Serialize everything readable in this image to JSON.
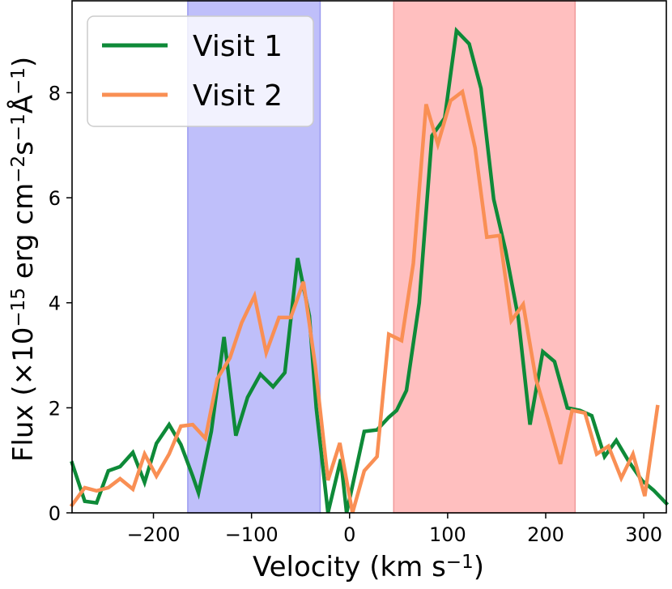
{
  "chart_data": {
    "type": "line",
    "xlabel": {
      "base": "Velocity (km s",
      "sup": "−1",
      "tail": ")"
    },
    "ylabel": {
      "parts": [
        {
          "t": "Flux (×10",
          "sup": false
        },
        {
          "t": "−15",
          "sup": true
        },
        {
          "t": " erg cm",
          "sup": false
        },
        {
          "t": "−2",
          "sup": true
        },
        {
          "t": "s",
          "sup": false
        },
        {
          "t": "−1",
          "sup": true
        },
        {
          "t": "Å",
          "sup": false
        },
        {
          "t": "−1",
          "sup": true
        },
        {
          "t": ")",
          "sup": false
        }
      ]
    },
    "xlim": [
      -283,
      323
    ],
    "ylim": [
      0,
      9.75
    ],
    "xticks": [
      -200,
      -100,
      0,
      100,
      200,
      300
    ],
    "xtick_labels": [
      "−200",
      "−100",
      "0",
      "100",
      "200",
      "300"
    ],
    "yticks": [
      0,
      2,
      4,
      6,
      8
    ],
    "ytick_labels": [
      "0",
      "2",
      "4",
      "6",
      "8"
    ],
    "shaded_regions": [
      {
        "name": "blue-region",
        "x0": -165,
        "x1": -30,
        "color": "#bfbffa",
        "edge": "#9a9af0"
      },
      {
        "name": "red-region",
        "x0": 45,
        "x1": 230,
        "color": "#ffbfbf",
        "edge": "#f09a9a"
      }
    ],
    "series": [
      {
        "name": "Visit 1",
        "color": "#0e8a38",
        "points": [
          [
            -283,
            0.95
          ],
          [
            -270,
            0.22
          ],
          [
            -258,
            0.19
          ],
          [
            -246,
            0.8
          ],
          [
            -234,
            0.88
          ],
          [
            -221,
            1.15
          ],
          [
            -209,
            0.58
          ],
          [
            -197,
            1.32
          ],
          [
            -184,
            1.68
          ],
          [
            -172,
            1.3
          ],
          [
            -160,
            0.7
          ],
          [
            -154,
            0.38
          ],
          [
            -141,
            1.55
          ],
          [
            -128,
            3.35
          ],
          [
            -116,
            1.47
          ],
          [
            -104,
            2.2
          ],
          [
            -91,
            2.64
          ],
          [
            -78,
            2.4
          ],
          [
            -66,
            2.67
          ],
          [
            -53,
            4.85
          ],
          [
            -41,
            3.75
          ],
          [
            -34,
            2.0
          ],
          [
            -22,
            0.0
          ],
          [
            -9,
            1.02
          ],
          [
            -3,
            0.0
          ],
          [
            15,
            1.55
          ],
          [
            28,
            1.58
          ],
          [
            40,
            1.82
          ],
          [
            48,
            1.95
          ],
          [
            58,
            2.33
          ],
          [
            71,
            4.0
          ],
          [
            84,
            7.18
          ],
          [
            97,
            7.52
          ],
          [
            109,
            9.18
          ],
          [
            122,
            8.93
          ],
          [
            134,
            8.08
          ],
          [
            147,
            5.97
          ],
          [
            159,
            5.0
          ],
          [
            172,
            3.72
          ],
          [
            184,
            1.68
          ],
          [
            197,
            3.07
          ],
          [
            209,
            2.88
          ],
          [
            222,
            2.0
          ],
          [
            235,
            1.95
          ],
          [
            247,
            1.85
          ],
          [
            260,
            1.07
          ],
          [
            272,
            1.38
          ],
          [
            285,
            0.97
          ],
          [
            298,
            0.62
          ],
          [
            310,
            0.43
          ],
          [
            323,
            0.18
          ]
        ]
      },
      {
        "name": "Visit 2",
        "color": "#f98f54",
        "points": [
          [
            -283,
            0.15
          ],
          [
            -270,
            0.48
          ],
          [
            -258,
            0.42
          ],
          [
            -246,
            0.48
          ],
          [
            -234,
            0.65
          ],
          [
            -221,
            0.45
          ],
          [
            -209,
            1.12
          ],
          [
            -197,
            0.7
          ],
          [
            -184,
            1.12
          ],
          [
            -172,
            1.65
          ],
          [
            -160,
            1.68
          ],
          [
            -147,
            1.42
          ],
          [
            -135,
            2.55
          ],
          [
            -122,
            2.95
          ],
          [
            -110,
            3.62
          ],
          [
            -97,
            4.13
          ],
          [
            -85,
            3.05
          ],
          [
            -72,
            3.72
          ],
          [
            -60,
            3.72
          ],
          [
            -47,
            4.4
          ],
          [
            -35,
            2.8
          ],
          [
            -22,
            0.62
          ],
          [
            -10,
            1.33
          ],
          [
            3,
            0.0
          ],
          [
            15,
            0.8
          ],
          [
            28,
            1.07
          ],
          [
            40,
            3.4
          ],
          [
            53,
            3.28
          ],
          [
            65,
            4.75
          ],
          [
            78,
            7.78
          ],
          [
            90,
            7.02
          ],
          [
            103,
            7.85
          ],
          [
            115,
            8.02
          ],
          [
            128,
            6.95
          ],
          [
            140,
            5.25
          ],
          [
            153,
            5.28
          ],
          [
            165,
            3.66
          ],
          [
            177,
            3.97
          ],
          [
            190,
            2.55
          ],
          [
            202,
            1.8
          ],
          [
            215,
            0.93
          ],
          [
            227,
            1.95
          ],
          [
            240,
            1.9
          ],
          [
            252,
            1.12
          ],
          [
            264,
            1.27
          ],
          [
            277,
            0.66
          ],
          [
            289,
            1.12
          ],
          [
            301,
            0.32
          ],
          [
            314,
            2.02
          ]
        ]
      }
    ],
    "legend": {
      "position": "top-left"
    }
  }
}
